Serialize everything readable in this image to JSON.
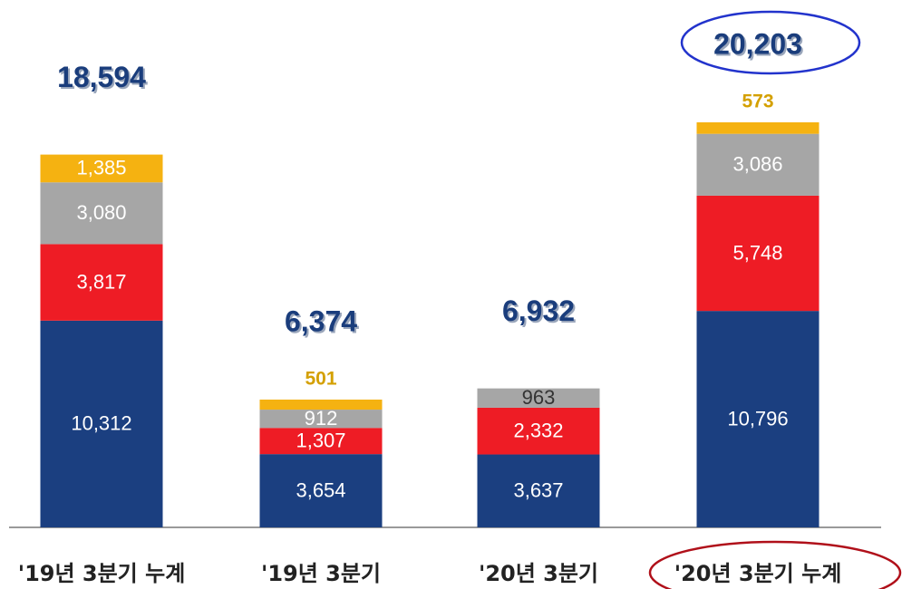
{
  "chart_data": {
    "type": "stacked_bar",
    "categories": [
      "'19년 3분기 누계",
      "'19년 3분기",
      "'20년 3분기",
      "'20년 3분기 누계"
    ],
    "series": [
      {
        "color": "#1b3f80",
        "values": [
          10312,
          3654,
          3637,
          10796
        ],
        "value_labels": [
          "10,312",
          "3,654",
          "3,637",
          "10,796"
        ]
      },
      {
        "color": "#ee1c25",
        "values": [
          3817,
          1307,
          2332,
          5748
        ],
        "value_labels": [
          "3,817",
          "1,307",
          "2,332",
          "5,748"
        ]
      },
      {
        "color": "#a6a6a6",
        "values": [
          3080,
          912,
          963,
          3086
        ],
        "value_labels": [
          "3,080",
          "912",
          "963",
          "3,086"
        ]
      },
      {
        "color": "#f5b211",
        "values": [
          1385,
          501,
          null,
          573
        ],
        "value_labels": [
          "1,385",
          "501",
          null,
          "573"
        ]
      }
    ],
    "totals": [
      18594,
      6374,
      6932,
      20203
    ],
    "total_labels": [
      "18,594",
      "6,374",
      "6,932",
      "20,203"
    ]
  }
}
